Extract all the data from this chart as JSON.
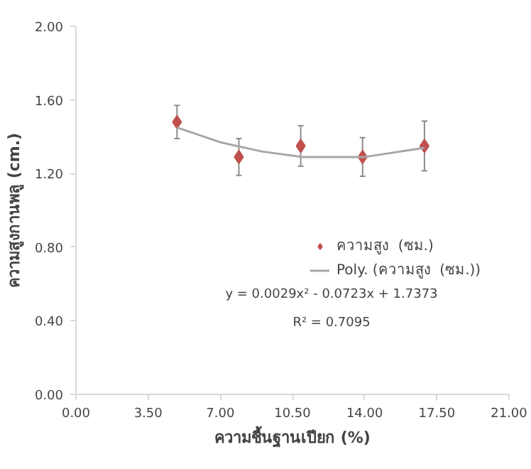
{
  "chart_data": {
    "type": "scatter",
    "xlabel": "ความชื้นฐานเปียก (%)",
    "ylabel": "ความสูงกานพลู (cm.)",
    "xlim": [
      0,
      21
    ],
    "xticks": [
      {
        "value": 0,
        "label": "0.00"
      },
      {
        "value": 3.5,
        "label": "3.50"
      },
      {
        "value": 7,
        "label": "7.00"
      },
      {
        "value": 10.5,
        "label": "10.50"
      },
      {
        "value": 14,
        "label": "14.00"
      },
      {
        "value": 17.5,
        "label": "17.50"
      },
      {
        "value": 21,
        "label": "21.00"
      }
    ],
    "ylim": [
      0,
      2
    ],
    "yticks": [
      {
        "value": 0,
        "label": "0.00"
      },
      {
        "value": 0.4,
        "label": "0.40"
      },
      {
        "value": 0.8,
        "label": "0.80"
      },
      {
        "value": 1.2,
        "label": "1.20"
      },
      {
        "value": 1.6,
        "label": "1.60"
      },
      {
        "value": 2,
        "label": "2.00"
      }
    ],
    "grid": false,
    "legend": "right",
    "series": [
      {
        "name": "ความสูง  (ซม.)",
        "marker": "diamond",
        "color": "#c0504d",
        "x": [
          4.9,
          7.9,
          10.9,
          13.9,
          16.9
        ],
        "values": [
          1.48,
          1.29,
          1.35,
          1.29,
          1.35
        ],
        "errors": [
          0.09,
          0.1,
          0.11,
          0.105,
          0.135
        ]
      },
      {
        "name": "Poly. (ความสูง  (ซม.))",
        "type": "line",
        "marker": "none",
        "color": "#a6a6a6",
        "x": [
          4.9,
          7,
          9,
          11,
          12.5,
          14,
          16.9
        ],
        "values": [
          1.45,
          1.37,
          1.32,
          1.29,
          1.29,
          1.29,
          1.34
        ]
      }
    ],
    "annotations": [
      "y = 0.0029x² - 0.0723x + 1.7373",
      "R² = 0.7095"
    ]
  }
}
